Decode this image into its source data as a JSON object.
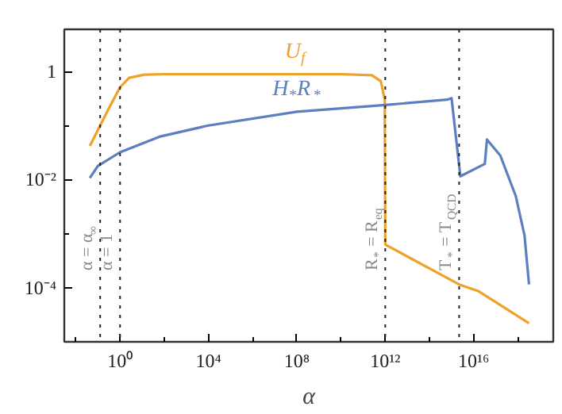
{
  "chart_data": {
    "type": "line",
    "xlabel": "α",
    "log": "xy",
    "grid": false,
    "xlim": [
      0.003,
      4e+19
    ],
    "ylim": [
      1e-05,
      6
    ],
    "xticks": [
      {
        "value": 0.01,
        "label": null
      },
      {
        "value": 1,
        "label": "10⁰"
      },
      {
        "value": 100,
        "label": null
      },
      {
        "value": 10000.0,
        "label": "10⁴"
      },
      {
        "value": 1000000.0,
        "label": null
      },
      {
        "value": 100000000.0,
        "label": "10⁸"
      },
      {
        "value": 10000000000.0,
        "label": null
      },
      {
        "value": 1000000000000.0,
        "label": "10¹²"
      },
      {
        "value": 100000000000000.0,
        "label": null
      },
      {
        "value": 1e+16,
        "label": "10¹⁶"
      },
      {
        "value": 1e+18,
        "label": null
      }
    ],
    "yticks": [
      {
        "value": 1,
        "label": "1"
      },
      {
        "value": 0.1,
        "label": null
      },
      {
        "value": 0.01,
        "label": "10⁻²"
      },
      {
        "value": 0.001,
        "label": null
      },
      {
        "value": 0.0001,
        "label": "10⁻⁴"
      }
    ],
    "series": [
      {
        "name": "U$_{f}$",
        "color": "#eda22a",
        "x": [
          0.043,
          0.1,
          0.316,
          1,
          2.57,
          12.6,
          100,
          10000.0,
          1000000.0,
          100000000.0,
          10000000000.0,
          250000000000.0,
          630000000000.0,
          950000000000.0,
          1000000000000.0,
          2200000000000000.0,
          1.6e+16,
          3.2e+18
        ],
        "values": [
          0.042,
          0.083,
          0.21,
          0.51,
          0.76,
          0.87,
          0.89,
          0.89,
          0.89,
          0.89,
          0.89,
          0.85,
          0.66,
          0.3,
          0.00063,
          0.000115,
          8.7e-05,
          2.2e-05
        ]
      },
      {
        "name": "H$_{*}$R$_{*}$",
        "color": "#5b7fbf",
        "x": [
          0.043,
          0.1,
          1,
          60,
          10000.0,
          100000000.0,
          1000000000000.0,
          630000000000000.0,
          1000000000000000.0,
          2500000000000000.0,
          3.2e+16,
          4e+16,
          1.6e+17,
          8e+17,
          2e+18,
          3.2e+18
        ],
        "values": [
          0.0107,
          0.018,
          0.032,
          0.062,
          0.1,
          0.18,
          0.24,
          0.3,
          0.32,
          0.0115,
          0.0195,
          0.055,
          0.028,
          0.005,
          0.00093,
          0.000115
        ]
      }
    ],
    "ref_lines": [
      {
        "axis": "x",
        "value": 0.126,
        "label": "α = α$_{∞}$",
        "line_style": "dotted"
      },
      {
        "axis": "x",
        "value": 1,
        "label": "α = 1",
        "line_style": "dotted"
      },
      {
        "axis": "x",
        "value": 1000000000000.0,
        "label": "R$_{*}$ = R$_{eq}$",
        "line_style": "dotted"
      },
      {
        "axis": "x",
        "value": 2200000000000000.0,
        "label": "T$_{*}$ = T$_{QCD}$",
        "line_style": "dotted"
      }
    ]
  }
}
